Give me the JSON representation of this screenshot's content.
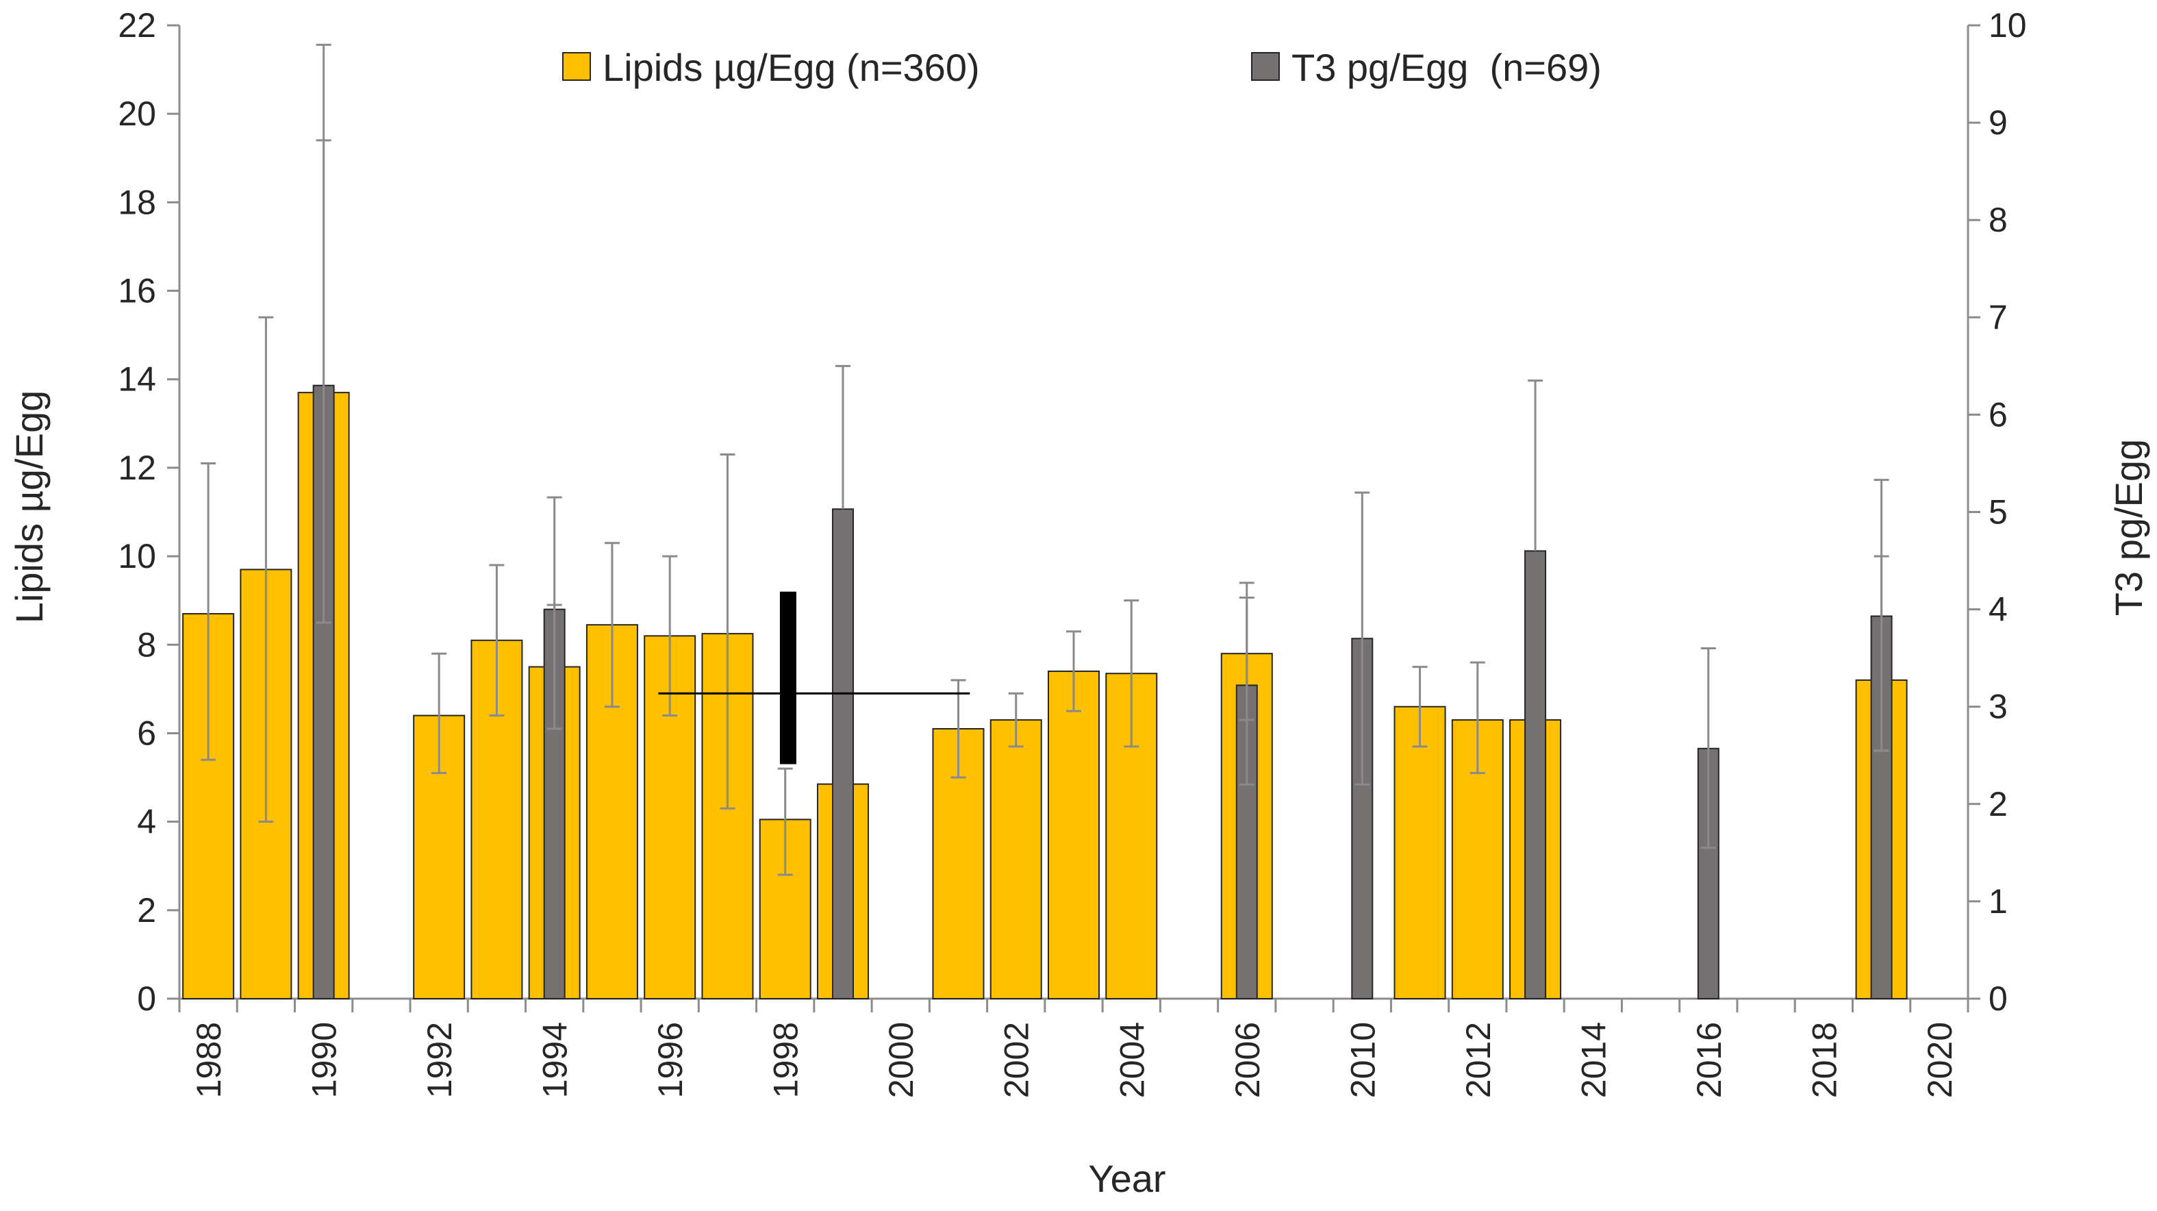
{
  "chart_data": {
    "type": "bar",
    "xlabel": "Year",
    "ylabel_left": "Lipids µg/Egg",
    "ylabel_right": "T3 pg/Egg",
    "ylim_left": [
      0,
      22
    ],
    "ylim_right": [
      0,
      10
    ],
    "yticks_left": [
      "0",
      "2",
      "4",
      "6",
      "8",
      "10",
      "12",
      "14",
      "16",
      "18",
      "20",
      "22"
    ],
    "yticks_right": [
      "0",
      "1",
      "2",
      "3",
      "4",
      "5",
      "6",
      "7",
      "8",
      "9",
      "10"
    ],
    "xtick_labels": [
      "1988",
      "1990",
      "1992",
      "1994",
      "1996",
      "1998",
      "2000",
      "2002",
      "2004",
      "2006",
      "2010",
      "2012",
      "2014",
      "2016",
      "2018",
      "2020"
    ],
    "legend": {
      "position": "top-center",
      "lipids_label": "Lipids µg/Egg (n=360)",
      "t3_label": "T3 pg/Egg  (n=69)"
    },
    "colors": {
      "lipids_fill": "#FFC000",
      "t3_fill": "#767171",
      "bar_outline": "#262626",
      "error_bar": "#8a8a8a",
      "axis": "#8c8c8c",
      "annotation": "#000000"
    },
    "series": [
      {
        "name": "Lipids µg/Egg (n=360)",
        "axis": "left",
        "points": [
          {
            "cat": 0,
            "value": 8.7,
            "err_hi": 12.1,
            "err_lo": 5.4
          },
          {
            "cat": 1,
            "value": 9.7,
            "err_hi": 15.4,
            "err_lo": 4.0
          },
          {
            "cat": 2,
            "value": 13.7,
            "err_hi": 19.4,
            "err_lo": 8.5
          },
          {
            "cat": 4,
            "value": 6.4,
            "err_hi": 7.8,
            "err_lo": 5.1
          },
          {
            "cat": 5,
            "value": 8.1,
            "err_hi": 9.8,
            "err_lo": 6.4
          },
          {
            "cat": 6,
            "value": 7.5,
            "err_hi": 8.9,
            "err_lo": 6.1
          },
          {
            "cat": 7,
            "value": 8.45,
            "err_hi": 10.3,
            "err_lo": 6.6
          },
          {
            "cat": 8,
            "value": 8.2,
            "err_hi": 10.0,
            "err_lo": 6.4
          },
          {
            "cat": 9,
            "value": 8.25,
            "err_hi": 12.3,
            "err_lo": 4.3
          },
          {
            "cat": 10,
            "value": 4.05,
            "err_hi": 5.2,
            "err_lo": 2.8
          },
          {
            "cat": 11,
            "value": 4.85,
            "err_hi": null,
            "err_lo": null
          },
          {
            "cat": 13,
            "value": 6.1,
            "err_hi": 7.2,
            "err_lo": 5.0
          },
          {
            "cat": 14,
            "value": 6.3,
            "err_hi": 6.9,
            "err_lo": 5.7
          },
          {
            "cat": 15,
            "value": 7.4,
            "err_hi": 8.3,
            "err_lo": 6.5
          },
          {
            "cat": 16,
            "value": 7.35,
            "err_hi": 9.0,
            "err_lo": 5.7
          },
          {
            "cat": 18,
            "value": 7.8,
            "err_hi": 9.4,
            "err_lo": 6.3
          },
          {
            "cat": 21,
            "value": 6.6,
            "err_hi": 7.5,
            "err_lo": 5.7
          },
          {
            "cat": 22,
            "value": 6.3,
            "err_hi": 7.6,
            "err_lo": 5.1
          },
          {
            "cat": 23,
            "value": 6.3,
            "err_hi": null,
            "err_lo": null
          },
          {
            "cat": 29,
            "value": 7.2,
            "err_hi": 10.0,
            "err_lo": 5.6
          }
        ]
      },
      {
        "name": "T3 pg/Egg  (n=69)",
        "axis": "right",
        "points": [
          {
            "cat": 2,
            "value": 6.3,
            "err_hi": 9.8,
            "err_lo": null
          },
          {
            "cat": 6,
            "value": 4.0,
            "err_hi": 5.15,
            "err_lo": null
          },
          {
            "cat": 11,
            "value": 5.03,
            "err_hi": 6.5,
            "err_lo": null
          },
          {
            "cat": 18,
            "value": 3.22,
            "err_hi": 4.12,
            "err_lo": 2.2
          },
          {
            "cat": 20,
            "value": 3.7,
            "err_hi": 5.2,
            "err_lo": 2.2
          },
          {
            "cat": 23,
            "value": 4.6,
            "err_hi": 6.35,
            "err_lo": null
          },
          {
            "cat": 26,
            "value": 2.57,
            "err_hi": 3.6,
            "err_lo": 1.55
          },
          {
            "cat": 29,
            "value": 3.93,
            "err_hi": 5.33,
            "err_lo": 2.55
          }
        ]
      }
    ],
    "annotations": [
      {
        "type": "hline",
        "axis": "left",
        "y": 6.9,
        "from_cat": 7.8,
        "to_cat": 13.2
      },
      {
        "type": "thick_vline",
        "axis": "left",
        "cat": 10.05,
        "y_from": 5.3,
        "y_to": 9.2
      }
    ]
  }
}
